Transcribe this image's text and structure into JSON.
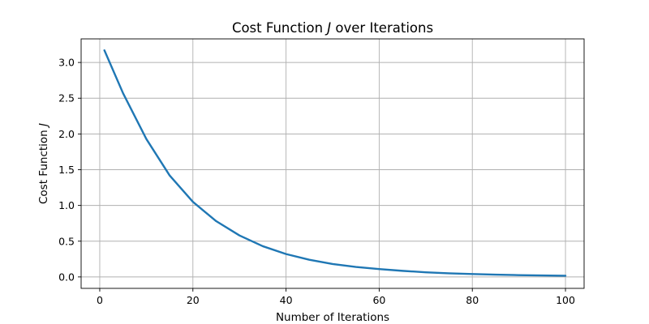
{
  "chart_data": {
    "type": "line",
    "title": "Cost Function",
    "title_symbol": "J",
    "title_suffix": "over Iterations",
    "xlabel": "Number of Iterations",
    "ylabel": "Cost Function",
    "ylabel_symbol": "J",
    "xlim": [
      -4.0,
      104.0
    ],
    "ylim": [
      -0.16,
      3.33
    ],
    "xticks": [
      0,
      20,
      40,
      60,
      80,
      100
    ],
    "xtick_labels": [
      "0",
      "20",
      "40",
      "60",
      "80",
      "100"
    ],
    "yticks": [
      0.0,
      0.5,
      1.0,
      1.5,
      2.0,
      2.5,
      3.0
    ],
    "ytick_labels": [
      "0.0",
      "0.5",
      "1.0",
      "1.5",
      "2.0",
      "2.5",
      "3.0"
    ],
    "grid": true,
    "series": [
      {
        "color": "#1f77b4",
        "x": [
          1,
          5,
          10,
          15,
          20,
          25,
          30,
          35,
          40,
          45,
          50,
          55,
          60,
          65,
          70,
          75,
          80,
          85,
          90,
          95,
          100
        ],
        "y": [
          3.17,
          2.57,
          1.93,
          1.42,
          1.05,
          0.78,
          0.58,
          0.43,
          0.32,
          0.24,
          0.18,
          0.14,
          0.11,
          0.085,
          0.065,
          0.05,
          0.04,
          0.032,
          0.025,
          0.02,
          0.016
        ]
      }
    ]
  }
}
